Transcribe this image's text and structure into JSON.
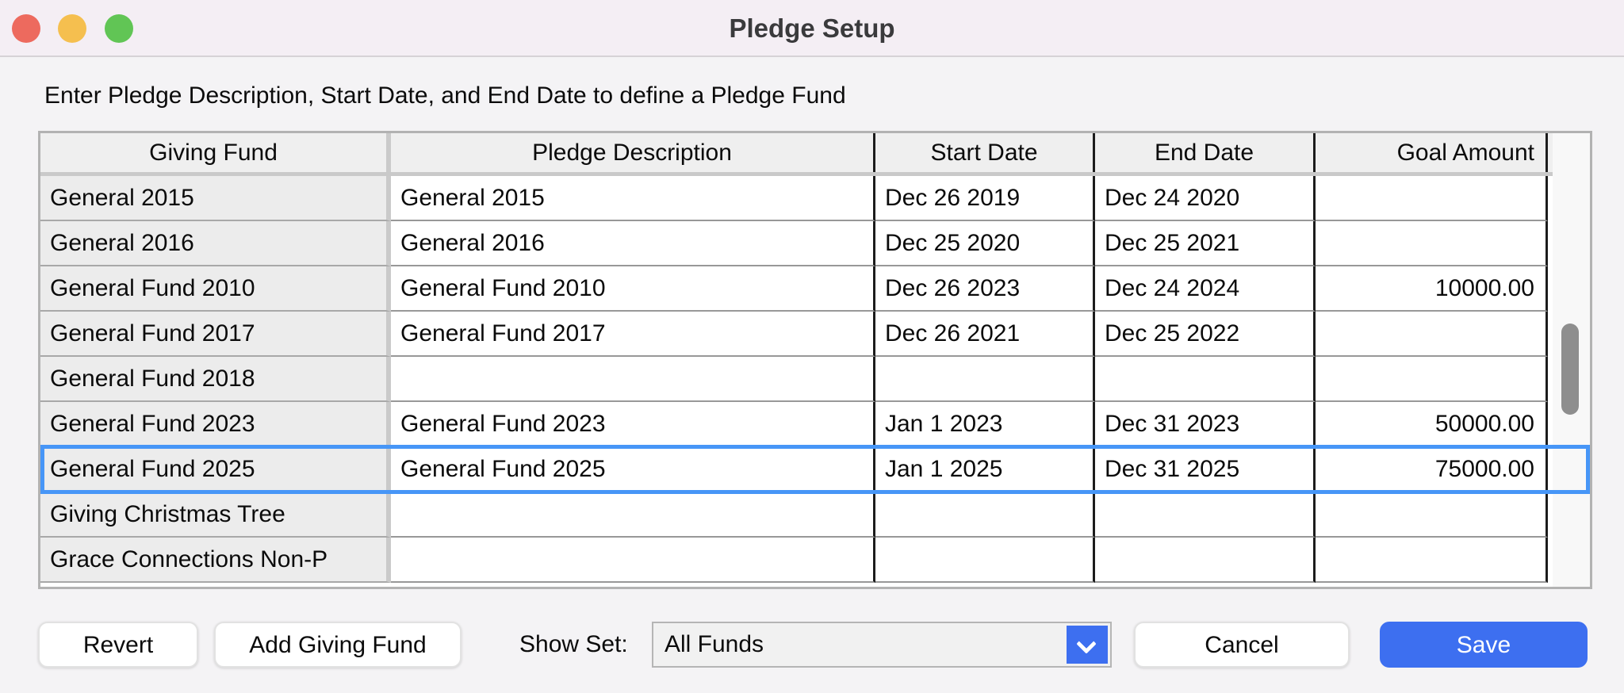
{
  "window": {
    "title": "Pledge Setup"
  },
  "titlebar": {
    "traffic_lights": [
      {
        "name": "close",
        "color": "#ed6a5e"
      },
      {
        "name": "minimize",
        "color": "#f5bf4f"
      },
      {
        "name": "zoom",
        "color": "#61c555"
      }
    ]
  },
  "instruction": "Enter Pledge Description, Start Date, and End Date to define a Pledge Fund",
  "table": {
    "columns": [
      "Giving Fund",
      "Pledge Description",
      "Start Date",
      "End Date",
      "Goal Amount"
    ],
    "rows": [
      {
        "fund": "General 2015",
        "description": "General 2015",
        "start_date": "Dec 26 2019",
        "end_date": "Dec 24 2020",
        "goal_amount": "",
        "selected": false
      },
      {
        "fund": "General 2016",
        "description": "General 2016",
        "start_date": "Dec 25 2020",
        "end_date": "Dec 25 2021",
        "goal_amount": "",
        "selected": false
      },
      {
        "fund": "General Fund 2010",
        "description": "General Fund 2010",
        "start_date": "Dec 26 2023",
        "end_date": "Dec 24 2024",
        "goal_amount": "10000.00",
        "selected": false
      },
      {
        "fund": "General Fund 2017",
        "description": "General Fund 2017",
        "start_date": "Dec 26 2021",
        "end_date": "Dec 25 2022",
        "goal_amount": "",
        "selected": false
      },
      {
        "fund": "General Fund 2018",
        "description": "",
        "start_date": "",
        "end_date": "",
        "goal_amount": "",
        "selected": false
      },
      {
        "fund": "General Fund 2023",
        "description": "General Fund 2023",
        "start_date": "Jan 1 2023",
        "end_date": "Dec 31 2023",
        "goal_amount": "50000.00",
        "selected": false
      },
      {
        "fund": "General Fund 2025",
        "description": "General Fund 2025",
        "start_date": "Jan 1 2025",
        "end_date": "Dec 31 2025",
        "goal_amount": "75000.00",
        "selected": true
      },
      {
        "fund": "Giving Christmas Tree",
        "description": "",
        "start_date": "",
        "end_date": "",
        "goal_amount": "",
        "selected": false
      },
      {
        "fund": "Grace Connections Non-P",
        "description": "",
        "start_date": "",
        "end_date": "",
        "goal_amount": "",
        "selected": false
      }
    ]
  },
  "footer": {
    "revert_label": "Revert",
    "add_giving_fund_label": "Add Giving Fund",
    "show_set_label": "Show Set:",
    "show_set_value": "All Funds",
    "cancel_label": "Cancel",
    "save_label": "Save"
  },
  "colors": {
    "accent_blue": "#3d6ff0",
    "selection_blue": "#4796f7",
    "titlebar_bg": "#f4eef4"
  }
}
